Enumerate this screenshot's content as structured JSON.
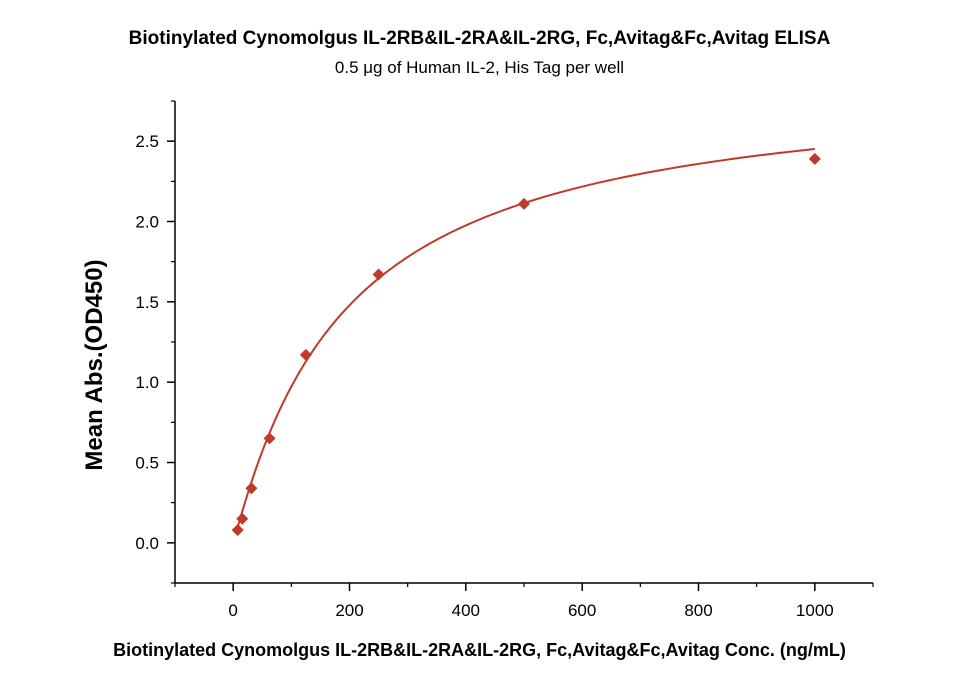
{
  "chart_data": {
    "type": "scatter",
    "title": "Biotinylated Cynomolgus IL-2RB&IL-2RA&IL-2RG, Fc,Avitag&Fc,Avitag ELISA",
    "subtitle": "0.5 μg of Human IL-2, His Tag per well",
    "xlabel": "Biotinylated Cynomolgus IL-2RB&IL-2RA&IL-2RG, Fc,Avitag&Fc,Avitag Conc. (ng/mL)",
    "ylabel": "Mean Abs.(OD450)",
    "xlim": [
      -100,
      1100
    ],
    "ylim": [
      -0.25,
      2.75
    ],
    "x_ticks": [
      0,
      200,
      400,
      600,
      800,
      1000
    ],
    "y_ticks": [
      0.0,
      0.5,
      1.0,
      1.5,
      2.0,
      2.5
    ],
    "x_tick_labels": [
      "0",
      "200",
      "400",
      "600",
      "800",
      "1000"
    ],
    "y_tick_labels": [
      "0.0",
      "0.5",
      "1.0",
      "1.5",
      "2.0",
      "2.5"
    ],
    "grid": false,
    "color": "#c0392b",
    "series": [
      {
        "x": [
          7.8,
          15.6,
          31.3,
          62.5,
          125,
          250,
          500,
          1000
        ],
        "y": [
          0.08,
          0.15,
          0.34,
          0.65,
          1.17,
          1.67,
          2.11,
          2.39
        ]
      }
    ],
    "fit_curve": true
  }
}
